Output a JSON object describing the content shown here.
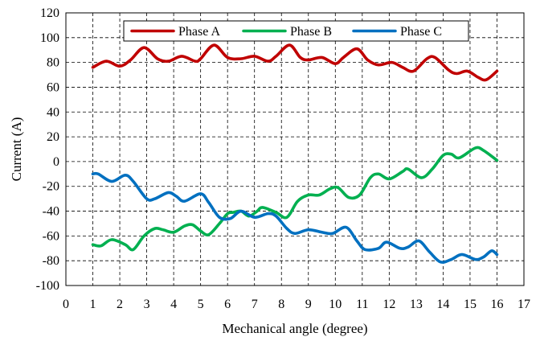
{
  "chart_data": {
    "type": "line",
    "xlabel": "Mechanical angle (degree)",
    "ylabel": "Current (A)",
    "xlim": [
      0,
      17
    ],
    "ylim": [
      -100,
      120
    ],
    "x_ticks": [
      "0",
      "1",
      "2",
      "3",
      "4",
      "5",
      "6",
      "7",
      "8",
      "9",
      "10",
      "11",
      "12",
      "13",
      "14",
      "15",
      "16",
      "17"
    ],
    "y_ticks": [
      "-100",
      "-80",
      "-60",
      "-40",
      "-20",
      "0",
      "20",
      "40",
      "60",
      "80",
      "100",
      "120"
    ],
    "grid": true,
    "legend_position": "top",
    "series": [
      {
        "name": "Phase A",
        "color": "#C00000",
        "points": [
          [
            1,
            76
          ],
          [
            1.5,
            81
          ],
          [
            2,
            77
          ],
          [
            2.4,
            82
          ],
          [
            2.9,
            92
          ],
          [
            3.4,
            83
          ],
          [
            3.8,
            81
          ],
          [
            4.3,
            85
          ],
          [
            4.8,
            81
          ],
          [
            5,
            83
          ],
          [
            5.5,
            94
          ],
          [
            6,
            84
          ],
          [
            6.5,
            83
          ],
          [
            7,
            85
          ],
          [
            7.5,
            81
          ],
          [
            7.8,
            85
          ],
          [
            8.3,
            94
          ],
          [
            8.7,
            84
          ],
          [
            9,
            82
          ],
          [
            9.5,
            84
          ],
          [
            10,
            79
          ],
          [
            10.3,
            84
          ],
          [
            10.8,
            91
          ],
          [
            11.2,
            82
          ],
          [
            11.6,
            78
          ],
          [
            12.1,
            80
          ],
          [
            12.5,
            76
          ],
          [
            12.9,
            73
          ],
          [
            13.4,
            83
          ],
          [
            13.7,
            84
          ],
          [
            14.2,
            74
          ],
          [
            14.5,
            71
          ],
          [
            14.9,
            73
          ],
          [
            15.3,
            68
          ],
          [
            15.6,
            66
          ],
          [
            16,
            73
          ]
        ]
      },
      {
        "name": "Phase B",
        "color": "#00B050",
        "points": [
          [
            1,
            -67
          ],
          [
            1.3,
            -68
          ],
          [
            1.7,
            -63
          ],
          [
            2.2,
            -67
          ],
          [
            2.5,
            -71
          ],
          [
            2.9,
            -60
          ],
          [
            3.3,
            -54
          ],
          [
            3.6,
            -55
          ],
          [
            4,
            -57
          ],
          [
            4.4,
            -52
          ],
          [
            4.7,
            -51
          ],
          [
            5,
            -56
          ],
          [
            5.3,
            -59
          ],
          [
            5.7,
            -50
          ],
          [
            6,
            -42
          ],
          [
            6.2,
            -41
          ],
          [
            6.5,
            -40
          ],
          [
            6.8,
            -44
          ],
          [
            7.1,
            -40
          ],
          [
            7.3,
            -37
          ],
          [
            7.8,
            -41
          ],
          [
            8.2,
            -45
          ],
          [
            8.6,
            -32
          ],
          [
            9,
            -27
          ],
          [
            9.4,
            -27
          ],
          [
            9.8,
            -22
          ],
          [
            10.1,
            -21
          ],
          [
            10.5,
            -29
          ],
          [
            10.9,
            -27
          ],
          [
            11.3,
            -13
          ],
          [
            11.6,
            -10
          ],
          [
            12,
            -14
          ],
          [
            12.5,
            -8
          ],
          [
            12.7,
            -6
          ],
          [
            13.2,
            -13
          ],
          [
            13.6,
            -6
          ],
          [
            14,
            5
          ],
          [
            14.3,
            6
          ],
          [
            14.6,
            3
          ],
          [
            15.2,
            11
          ],
          [
            15.5,
            9
          ],
          [
            16,
            1
          ]
        ]
      },
      {
        "name": "Phase C",
        "color": "#0070C0",
        "points": [
          [
            1,
            -10
          ],
          [
            1.2,
            -10
          ],
          [
            1.7,
            -16
          ],
          [
            2.2,
            -11
          ],
          [
            2.5,
            -16
          ],
          [
            3,
            -30
          ],
          [
            3.3,
            -30
          ],
          [
            3.8,
            -25
          ],
          [
            4.1,
            -28
          ],
          [
            4.4,
            -32
          ],
          [
            5,
            -26
          ],
          [
            5.3,
            -33
          ],
          [
            5.7,
            -45
          ],
          [
            6.1,
            -46
          ],
          [
            6.5,
            -40
          ],
          [
            7,
            -45
          ],
          [
            7.5,
            -42
          ],
          [
            7.8,
            -44
          ],
          [
            8.2,
            -54
          ],
          [
            8.5,
            -58
          ],
          [
            9,
            -55
          ],
          [
            9.5,
            -57
          ],
          [
            9.9,
            -58
          ],
          [
            10.4,
            -53
          ],
          [
            10.8,
            -64
          ],
          [
            11.1,
            -71
          ],
          [
            11.6,
            -70
          ],
          [
            11.9,
            -65
          ],
          [
            12.4,
            -70
          ],
          [
            12.7,
            -69
          ],
          [
            13.1,
            -64
          ],
          [
            13.5,
            -73
          ],
          [
            13.9,
            -81
          ],
          [
            14.3,
            -79
          ],
          [
            14.7,
            -75
          ],
          [
            15.2,
            -79
          ],
          [
            15.5,
            -77
          ],
          [
            15.8,
            -72
          ],
          [
            16,
            -75
          ]
        ]
      }
    ]
  }
}
